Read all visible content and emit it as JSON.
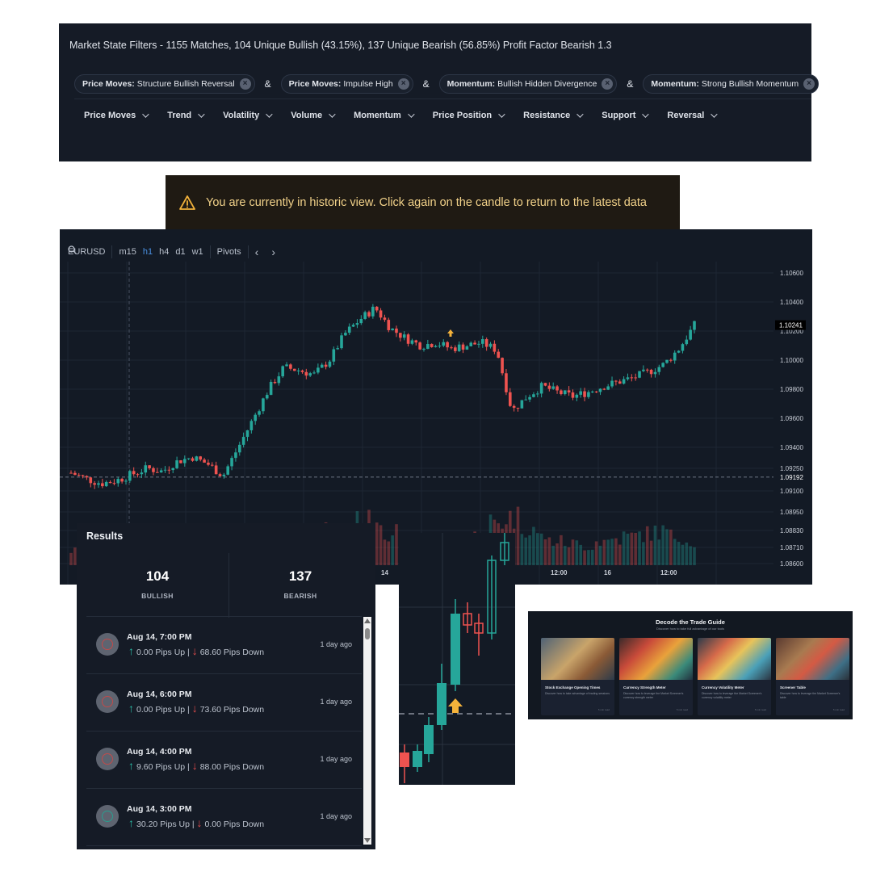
{
  "filters": {
    "summary": "Market State Filters - 1155 Matches, 104 Unique Bullish (43.15%), 137 Unique Bearish (56.85%) Profit Factor Bearish 1.3",
    "chips": [
      {
        "key": "Price Moves:",
        "value": "Structure Bullish Reversal"
      },
      {
        "key": "Price Moves:",
        "value": "Impulse High"
      },
      {
        "key": "Momentum:",
        "value": "Bullish Hidden Divergence"
      },
      {
        "key": "Momentum:",
        "value": "Strong Bullish Momentum"
      }
    ],
    "joiner": "&",
    "menus": [
      "Price Moves",
      "Trend",
      "Volatility",
      "Volume",
      "Momentum",
      "Price Position",
      "Resistance",
      "Support",
      "Reversal"
    ]
  },
  "banner": {
    "text": "You are currently in historic view. Click again on the candle to return to the latest data",
    "color": "#f1d189"
  },
  "chart": {
    "symbol": "EURUSD",
    "timeframes": [
      "m15",
      "h1",
      "h4",
      "d1",
      "w1"
    ],
    "active_timeframe": "h1",
    "pivots": "Pivots",
    "prev": "‹",
    "next": "›",
    "colors": {
      "up": "#26a69a",
      "down": "#ef5350",
      "bg": "#131a25"
    }
  },
  "chart_data": {
    "type": "candlestick",
    "symbol": "EURUSD",
    "y_ticks": [
      "1.10600",
      "1.10400",
      "1.10200",
      "1.10000",
      "1.09800",
      "1.09600",
      "1.09400",
      "1.09250",
      "1.09100",
      "1.08950",
      "1.08830",
      "1.08710",
      "1.08600"
    ],
    "y_range": [
      1.086,
      1.106
    ],
    "x_ticks": [
      "14",
      "12:00",
      "16",
      "12:00"
    ],
    "current_price": "1.10241",
    "reference_price": "1.09192",
    "close_path": [
      1.0922,
      1.0918,
      1.0915,
      1.0917,
      1.0921,
      1.0925,
      1.0923,
      1.093,
      1.0933,
      1.0928,
      1.092,
      1.094,
      1.096,
      1.098,
      1.0995,
      1.0993,
      1.099,
      1.1,
      1.1018,
      1.1028,
      1.1036,
      1.1022,
      1.1015,
      1.101,
      1.1012,
      1.1008,
      1.101,
      1.1012,
      1.1007,
      1.0965,
      1.0975,
      1.0982,
      1.0978,
      1.0975,
      1.0978,
      1.0982,
      1.0985,
      1.0988,
      1.0992,
      1.0997,
      1.1008,
      1.1024
    ],
    "volume_profile": [
      0.3,
      0.25,
      0.2,
      0.22,
      0.3,
      0.25,
      0.28,
      0.2,
      0.35,
      0.3,
      0.4,
      0.5,
      0.45,
      0.6,
      0.5,
      0.4,
      0.55,
      0.7,
      0.8,
      0.9,
      1.0,
      0.7,
      0.5,
      0.4,
      0.45,
      0.35,
      0.5,
      0.6,
      0.9,
      1.0,
      0.8,
      0.6,
      0.5,
      0.45,
      0.4,
      0.5,
      0.55,
      0.6,
      0.65,
      0.7,
      0.6,
      0.5
    ]
  },
  "results": {
    "title": "Results",
    "bullish_count": "104",
    "bullish_label": "BULLISH",
    "bearish_count": "137",
    "bearish_label": "BEARISH",
    "rows": [
      {
        "date": "Aug 14, 7:00 PM",
        "up": "0.00 Pips Up",
        "down": "68.60 Pips Down",
        "ago": "1 day ago",
        "type": "bearish"
      },
      {
        "date": "Aug 14, 6:00 PM",
        "up": "0.00 Pips Up",
        "down": "73.60 Pips Down",
        "ago": "1 day ago",
        "type": "bearish"
      },
      {
        "date": "Aug 14, 4:00 PM",
        "up": "9.60 Pips Up",
        "down": "88.00 Pips Down",
        "ago": "1 day ago",
        "type": "bearish"
      },
      {
        "date": "Aug 14, 3:00 PM",
        "up": "30.20 Pips Up",
        "down": "0.00 Pips Down",
        "ago": "1 day ago",
        "type": "bullish"
      }
    ],
    "separator": "|"
  },
  "guide": {
    "title": "Decode the Trade Guide",
    "subtitle": "Discover how to take full advantage of our tools",
    "cards": [
      {
        "title": "Stock Exchange Opening Times",
        "desc": "Discover how to take advantage of trading sessions",
        "footer": "5 min read"
      },
      {
        "title": "Currency Strength Meter",
        "desc": "Discover how to leverage the Market Screener's currency strength meter",
        "footer": "5 min read"
      },
      {
        "title": "Currency Volatility Meter",
        "desc": "Discover how to leverage the Market Screener's currency volatility meter",
        "footer": "5 min read"
      },
      {
        "title": "Screener Table",
        "desc": "Discover how to leverage the Market Screener's table",
        "footer": "5 min read"
      }
    ]
  }
}
